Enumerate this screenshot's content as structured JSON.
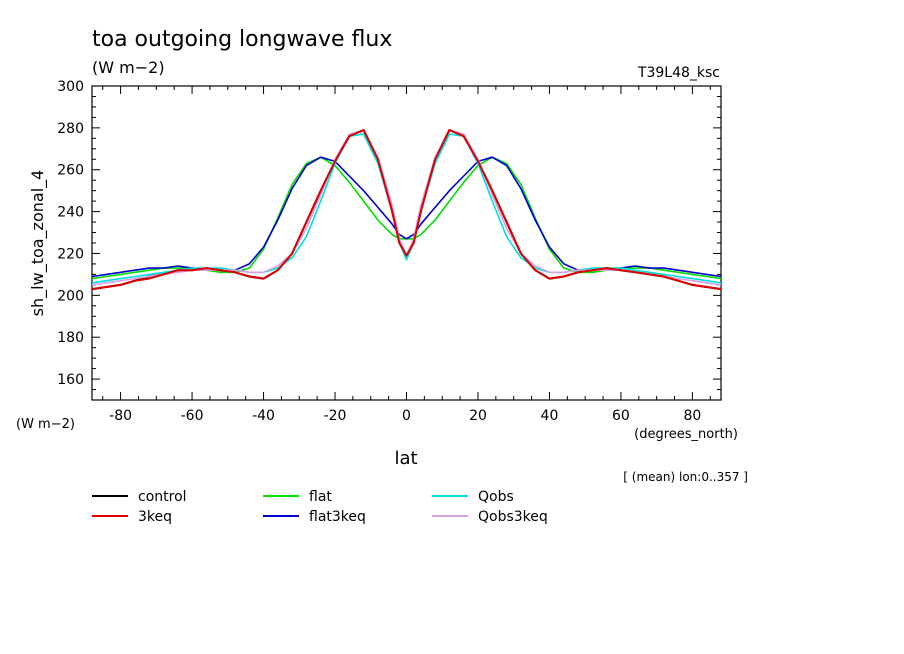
{
  "chart_data": {
    "type": "line",
    "title": "toa outgoing longwave flux",
    "subtitle": "(W m−2)",
    "run_label": "T39L48_ksc",
    "ylabel": "sh_lw_toa_zonal_4",
    "yunit": "(W m−2)",
    "xlabel": "lat",
    "xunit": "(degrees_north)",
    "footnote": "[ (mean) lon:0..357 ]",
    "xlim": [
      -88,
      88
    ],
    "ylim": [
      150,
      300
    ],
    "xticks": [
      -80,
      -60,
      -40,
      -20,
      0,
      20,
      40,
      60,
      80
    ],
    "yticks": [
      160,
      180,
      200,
      220,
      240,
      260,
      280,
      300
    ],
    "legend_placement": "bottom",
    "x": [
      -88,
      -84,
      -80,
      -76,
      -72,
      -68,
      -64,
      -60,
      -56,
      -52,
      -48,
      -44,
      -40,
      -36,
      -32,
      -28,
      -24,
      -20,
      -16,
      -12,
      -8,
      -4,
      -2,
      0,
      2,
      4,
      8,
      12,
      16,
      20,
      24,
      28,
      32,
      36,
      40,
      44,
      48,
      52,
      56,
      60,
      64,
      68,
      72,
      76,
      80,
      84,
      88
    ],
    "series": [
      {
        "name": "control",
        "color": "#000000",
        "values": [
          203,
          204,
          205,
          207,
          209,
          210,
          212,
          212,
          213,
          212,
          211,
          209,
          208,
          212,
          220,
          235,
          250,
          264,
          276,
          279,
          265,
          240,
          225,
          219,
          225,
          240,
          265,
          279,
          276,
          264,
          250,
          235,
          220,
          212,
          208,
          209,
          211,
          212,
          213,
          212,
          211,
          210,
          209,
          207,
          205,
          204,
          203
        ]
      },
      {
        "name": "3keq",
        "color": "#e00000",
        "values": [
          203,
          204,
          205,
          207,
          208,
          210,
          212,
          212,
          213,
          212,
          211,
          209,
          208,
          212,
          220,
          235,
          250,
          264,
          276,
          279,
          265,
          240,
          225,
          219,
          225,
          240,
          265,
          279,
          276,
          264,
          250,
          235,
          220,
          212,
          208,
          209,
          211,
          212,
          213,
          212,
          211,
          210,
          209,
          207,
          205,
          204,
          203
        ]
      },
      {
        "name": "flat",
        "color": "#00dd00",
        "values": [
          208,
          209,
          210,
          211,
          212,
          213,
          213,
          213,
          212,
          211,
          211,
          213,
          222,
          237,
          253,
          263,
          266,
          262,
          254,
          245,
          236,
          229,
          227,
          227,
          227,
          229,
          236,
          245,
          254,
          262,
          266,
          263,
          253,
          237,
          222,
          213,
          211,
          211,
          212,
          213,
          213,
          213,
          212,
          211,
          210,
          209,
          208
        ]
      },
      {
        "name": "flat3keq",
        "color": "#0000cc",
        "values": [
          209,
          210,
          211,
          212,
          213,
          213,
          214,
          213,
          212,
          212,
          212,
          215,
          223,
          236,
          251,
          262,
          266,
          264,
          257,
          250,
          242,
          234,
          229,
          227,
          229,
          234,
          242,
          250,
          257,
          264,
          266,
          262,
          251,
          236,
          223,
          215,
          212,
          212,
          212,
          213,
          214,
          213,
          213,
          212,
          211,
          210,
          209
        ]
      },
      {
        "name": "Qobs",
        "color": "#00e0e0",
        "values": [
          206,
          207,
          208,
          209,
          210,
          211,
          212,
          213,
          213,
          213,
          212,
          211,
          211,
          213,
          218,
          228,
          245,
          263,
          276,
          277,
          263,
          240,
          225,
          217,
          225,
          240,
          263,
          277,
          276,
          263,
          245,
          228,
          218,
          213,
          211,
          211,
          212,
          213,
          213,
          213,
          212,
          211,
          210,
          209,
          208,
          207,
          206
        ]
      },
      {
        "name": "Qobs3keq",
        "color": "#d8a0e0",
        "values": [
          205,
          206,
          207,
          208,
          209,
          210,
          211,
          212,
          212,
          212,
          212,
          211,
          211,
          214,
          220,
          232,
          248,
          265,
          277,
          279,
          266,
          243,
          227,
          219,
          227,
          243,
          266,
          279,
          277,
          265,
          248,
          232,
          220,
          214,
          211,
          211,
          212,
          212,
          212,
          212,
          211,
          210,
          209,
          208,
          207,
          206,
          205
        ]
      }
    ]
  }
}
